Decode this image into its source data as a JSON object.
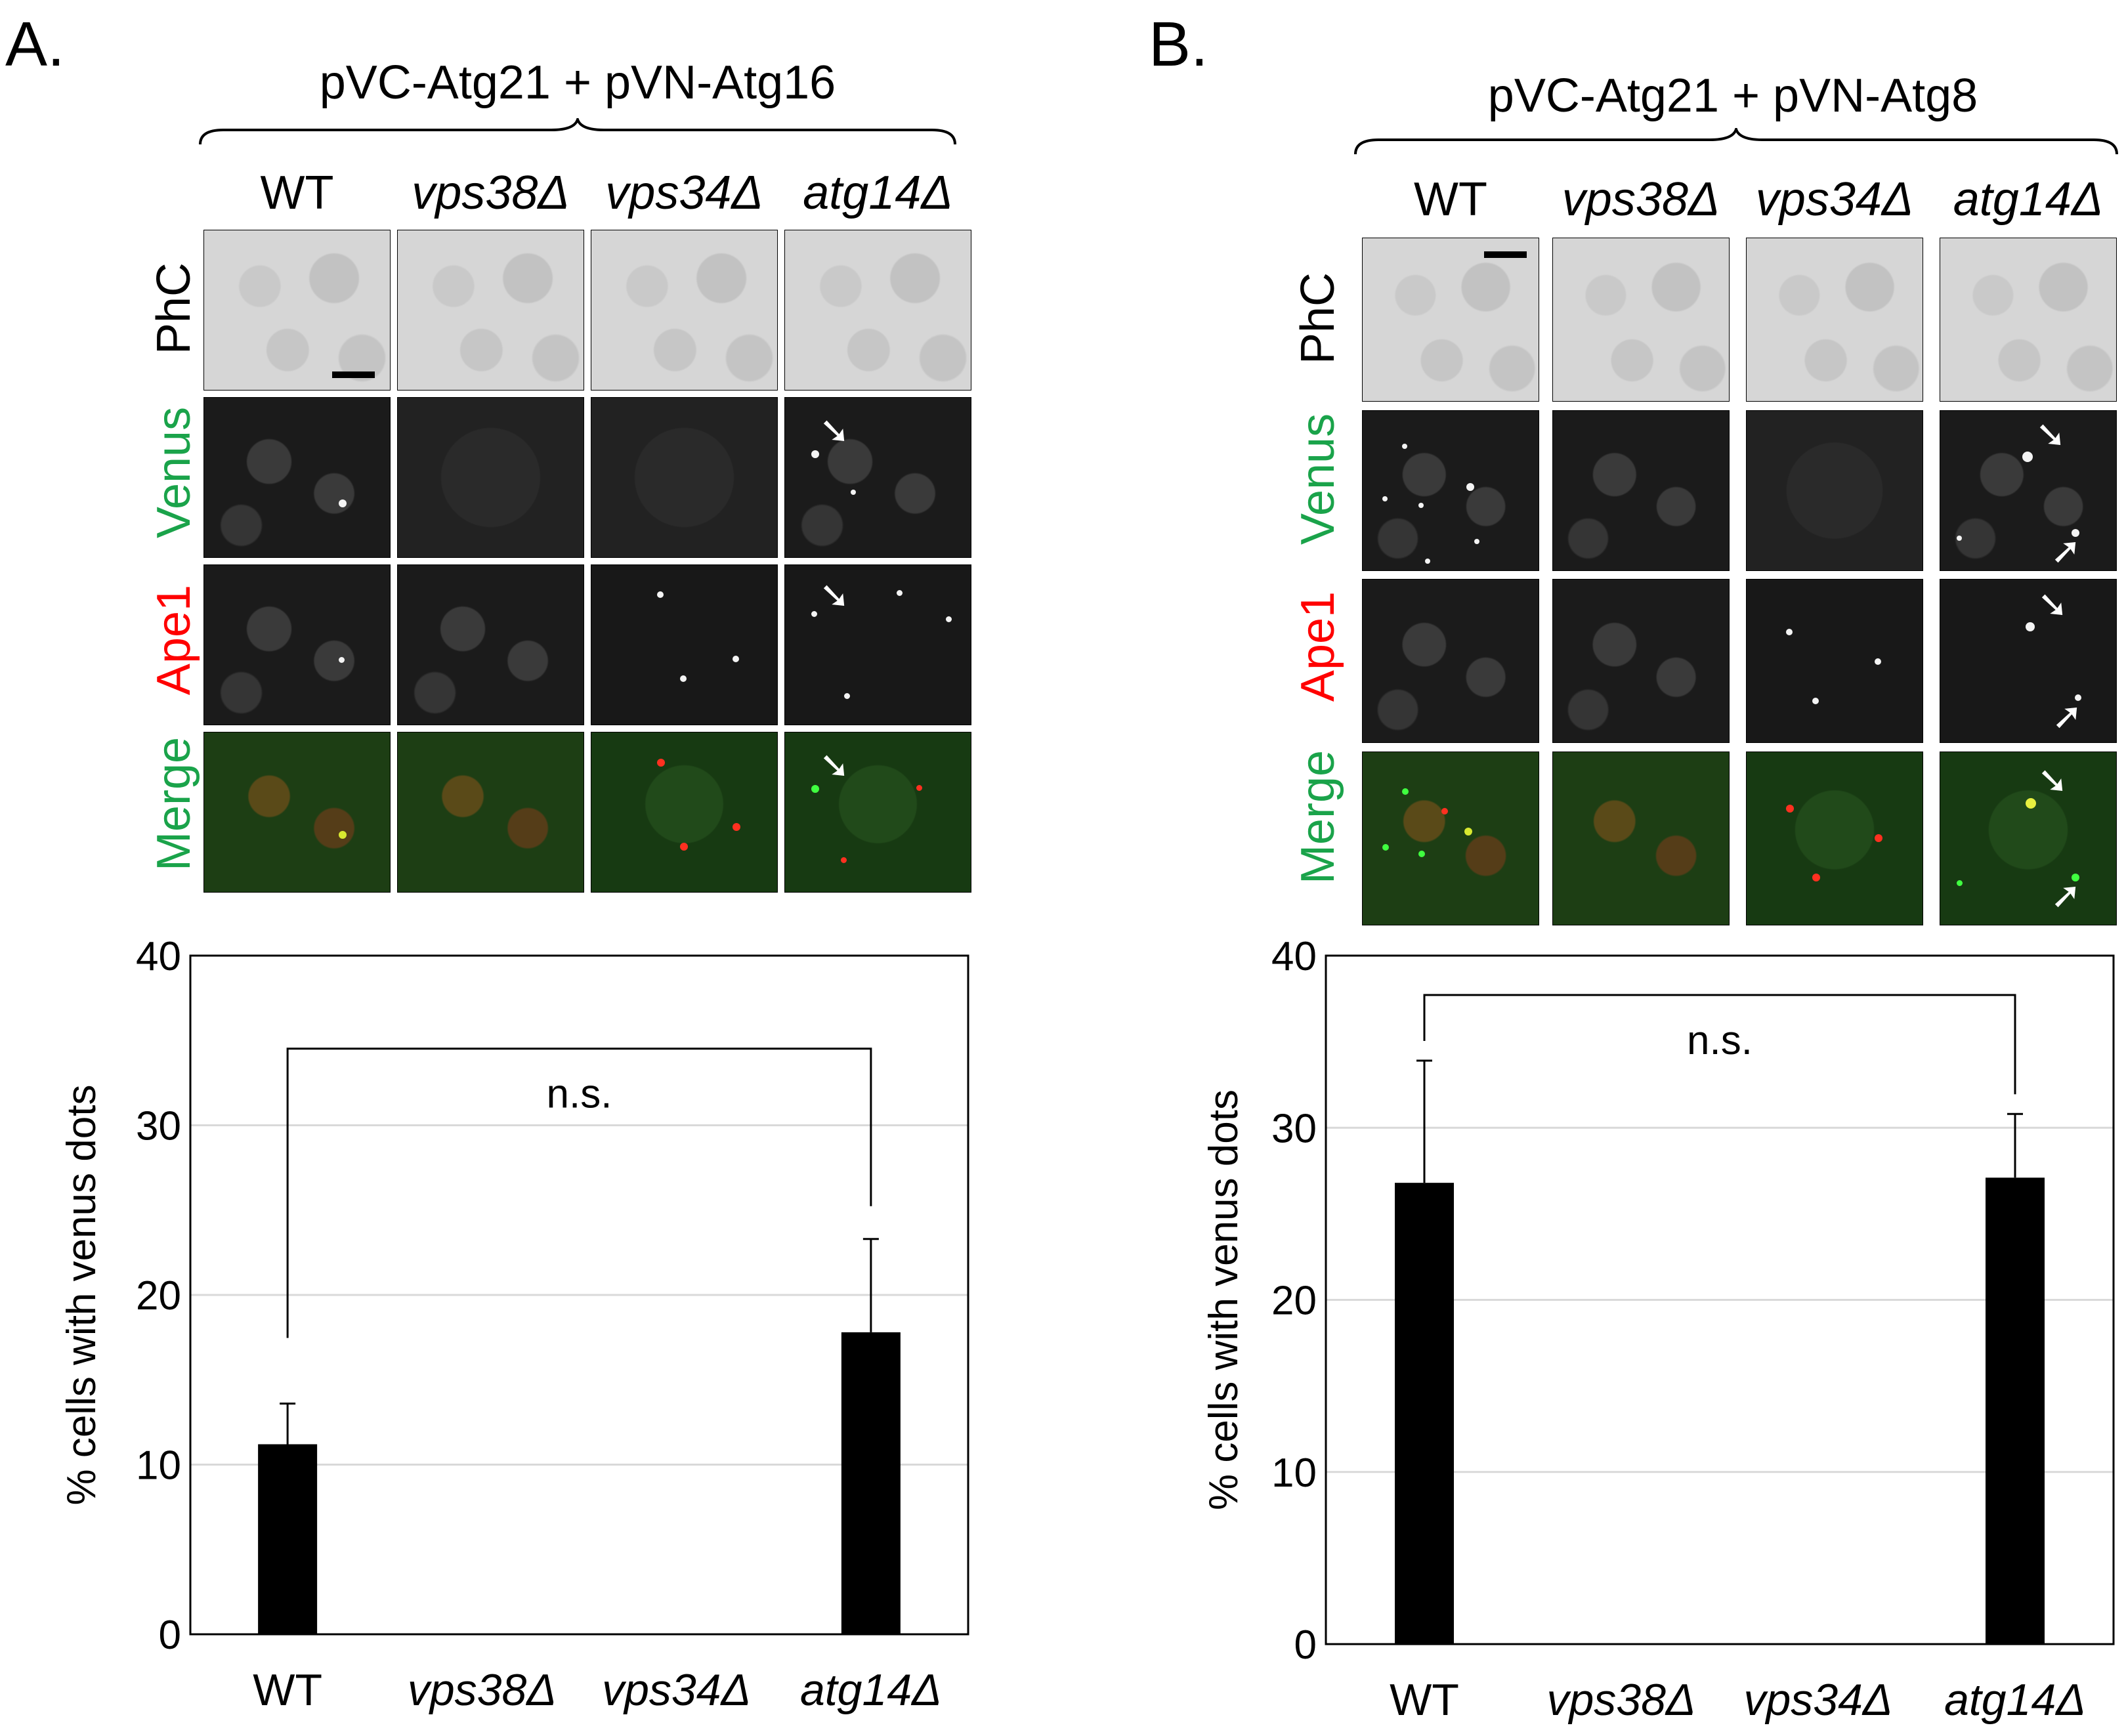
{
  "panel_a": {
    "letter": "A.",
    "construct": "pVC-Atg21 + pVN-Atg16",
    "columns": [
      "WT",
      "vps38Δ",
      "vps34Δ",
      "atg14Δ"
    ],
    "rows": [
      "PhC",
      "Venus",
      "Ape1",
      "Merge"
    ],
    "chart_data": {
      "type": "bar",
      "categories": [
        "WT",
        "vps38Δ",
        "vps34Δ",
        "atg14Δ"
      ],
      "values": [
        11.2,
        0,
        0,
        17.8
      ],
      "error": [
        2.4,
        0,
        0,
        5.5
      ],
      "ylabel": "% cells with venus dots",
      "ylim": [
        0,
        40
      ],
      "yticks": [
        "0",
        "10",
        "20",
        "30",
        "40"
      ],
      "annotation": "n.s.",
      "colors": {
        "bar": "#000000",
        "grid": "#d9d9d9"
      }
    }
  },
  "panel_b": {
    "letter": "B.",
    "construct": "pVC-Atg21 + pVN-Atg8",
    "columns": [
      "WT",
      "vps38Δ",
      "vps34Δ",
      "atg14Δ"
    ],
    "rows": [
      "PhC",
      "Venus",
      "Ape1",
      "Merge"
    ],
    "chart_data": {
      "type": "bar",
      "categories": [
        "WT",
        "vps38Δ",
        "vps34Δ",
        "atg14Δ"
      ],
      "values": [
        26.8,
        0,
        0,
        27.1
      ],
      "error": [
        7.1,
        0,
        0,
        3.7
      ],
      "ylabel": "% cells with venus dots",
      "ylim": [
        0,
        40
      ],
      "yticks": [
        "0",
        "10",
        "20",
        "30",
        "40"
      ],
      "annotation": "n.s.",
      "colors": {
        "bar": "#000000",
        "grid": "#d9d9d9"
      }
    }
  },
  "colors": {
    "venus": "#1aa34a",
    "ape1": "#ff0000",
    "merge_green": "#1aa34a"
  }
}
